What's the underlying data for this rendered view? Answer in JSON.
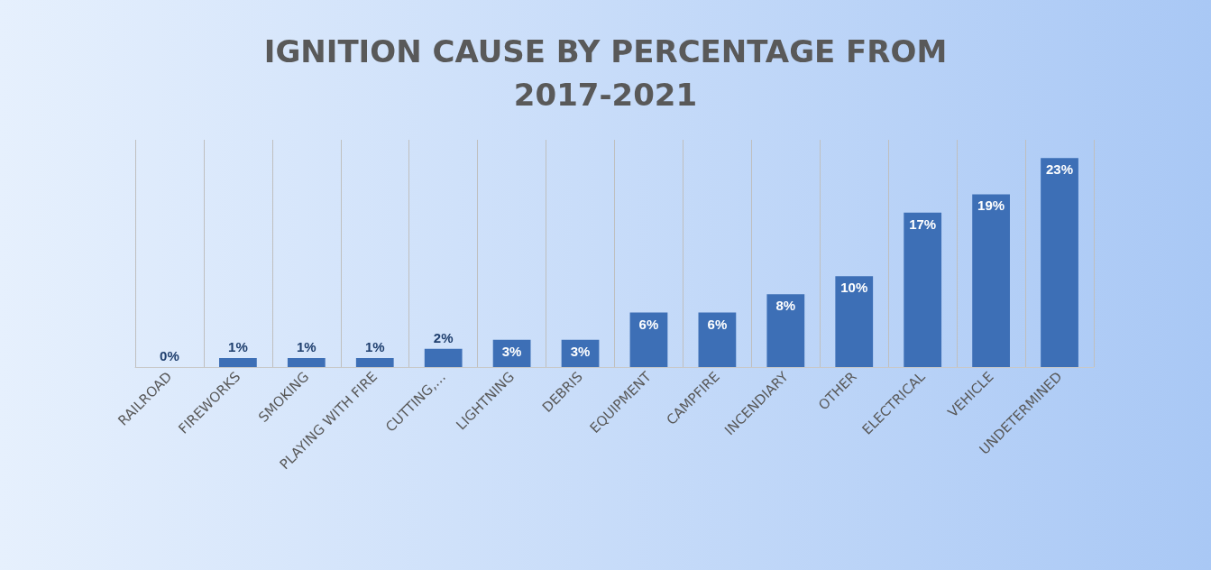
{
  "chart_data": {
    "type": "bar",
    "title": "IGNITION CAUSE BY PERCENTAGE FROM\n2017-2021",
    "categories": [
      "RAILROAD",
      "FIREWORKS",
      "SMOKING",
      "PLAYING WITH FIRE",
      "CUTTING,…",
      "LIGHTNING",
      "DEBRIS",
      "EQUIPMENT",
      "CAMPFIRE",
      "INCENDIARY",
      "OTHER",
      "ELECTRICAL",
      "VEHICLE",
      "UNDETERMINED"
    ],
    "values": [
      0,
      1,
      1,
      1,
      2,
      3,
      3,
      6,
      6,
      8,
      10,
      17,
      19,
      23
    ],
    "value_labels": [
      "0%",
      "1%",
      "1%",
      "1%",
      "2%",
      "3%",
      "3%",
      "6%",
      "6%",
      "8%",
      "10%",
      "17%",
      "19%",
      "23%"
    ],
    "color": "#3d6fb6",
    "grid": "x"
  }
}
